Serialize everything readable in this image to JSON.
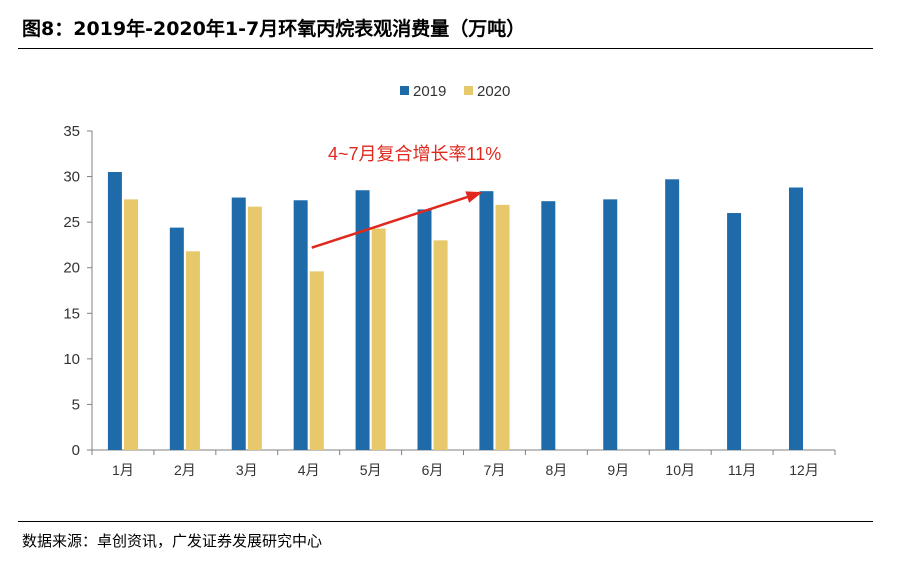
{
  "figure": {
    "title": "图8：2019年-2020年1-7月环氧丙烷表观消费量（万吨）",
    "source": "数据来源：卓创资讯，广发证券发展研究中心"
  },
  "colors": {
    "series_2019": "#1F6BAA",
    "series_2020": "#E7C86A",
    "annotation": "#E0281E",
    "axis": "#808080",
    "text": "#333333"
  },
  "chart_data": {
    "type": "bar",
    "title": "",
    "xlabel": "",
    "ylabel": "",
    "ylim": [
      0,
      35
    ],
    "yticks": [
      0,
      5,
      10,
      15,
      20,
      25,
      30,
      35
    ],
    "grid": false,
    "legend_position": "top-center",
    "categories": [
      "1月",
      "2月",
      "3月",
      "4月",
      "5月",
      "6月",
      "7月",
      "8月",
      "9月",
      "10月",
      "11月",
      "12月"
    ],
    "series": [
      {
        "name": "2019",
        "values": [
          30.5,
          24.4,
          27.7,
          27.4,
          28.5,
          26.4,
          28.4,
          27.3,
          27.5,
          29.7,
          26.0,
          28.8
        ]
      },
      {
        "name": "2020",
        "values": [
          27.5,
          21.8,
          26.7,
          19.6,
          24.3,
          23.0,
          26.9,
          null,
          null,
          null,
          null,
          null
        ]
      }
    ],
    "annotation": {
      "text": "4~7月复合增长率11%",
      "arrow_from": {
        "category": "4月",
        "value": 22.2
      },
      "arrow_to": {
        "category": "7月",
        "value": 28.3
      }
    }
  }
}
